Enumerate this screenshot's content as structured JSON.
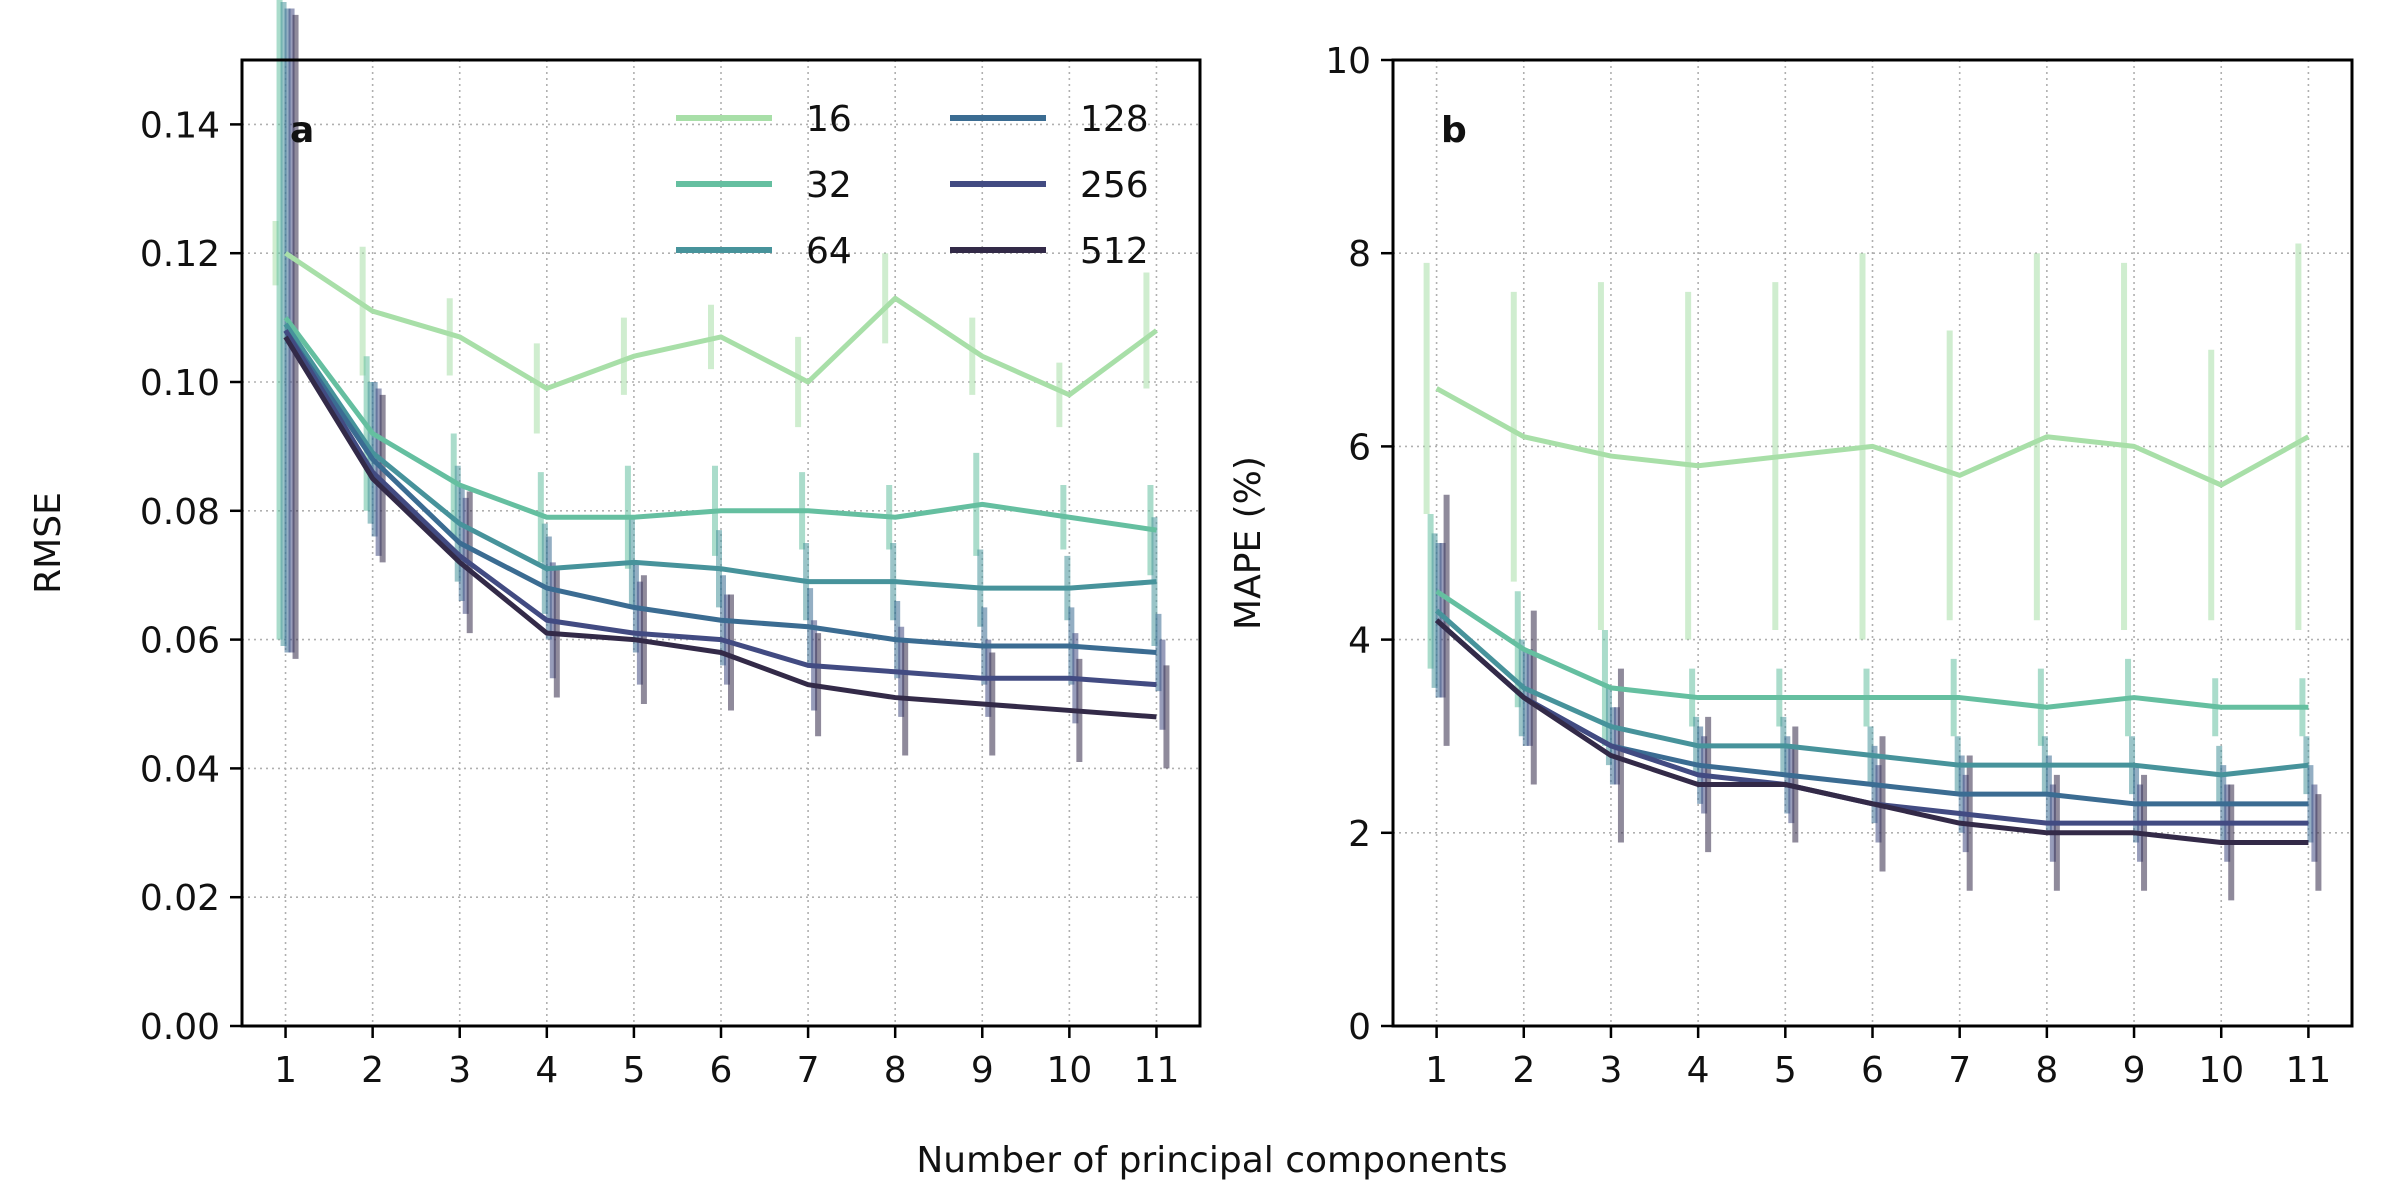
{
  "figure": {
    "shared_xlabel": "Number of principal components"
  },
  "chart_data": [
    {
      "type": "line",
      "panel_label": "a",
      "xlabel": "",
      "ylabel": "RMSE",
      "x": [
        1,
        2,
        3,
        4,
        5,
        6,
        7,
        8,
        9,
        10,
        11
      ],
      "xticks": [
        "1",
        "2",
        "3",
        "4",
        "5",
        "6",
        "7",
        "8",
        "9",
        "10",
        "11"
      ],
      "xlim": [
        0.5,
        11.5
      ],
      "ylim": [
        0,
        0.15
      ],
      "yticks": [
        "0.00",
        "0.02",
        "0.04",
        "0.06",
        "0.08",
        "0.10",
        "0.12",
        "0.14"
      ],
      "grid": true,
      "error_bars": true,
      "legend": {
        "position": "top-right",
        "columns": 2
      },
      "series": [
        {
          "name": "16",
          "color": "#a8dfa8",
          "values": [
            0.12,
            0.111,
            0.107,
            0.099,
            0.104,
            0.107,
            0.1,
            0.113,
            0.104,
            0.098,
            0.108
          ],
          "err": [
            0.005,
            0.01,
            0.006,
            0.007,
            0.006,
            0.005,
            0.007,
            0.007,
            0.006,
            0.005,
            0.009
          ]
        },
        {
          "name": "32",
          "color": "#65bfa0",
          "values": [
            0.11,
            0.092,
            0.084,
            0.079,
            0.079,
            0.08,
            0.08,
            0.079,
            0.081,
            0.079,
            0.077
          ],
          "err": [
            0.05,
            0.012,
            0.008,
            0.007,
            0.008,
            0.007,
            0.006,
            0.005,
            0.008,
            0.005,
            0.007
          ]
        },
        {
          "name": "64",
          "color": "#47939b",
          "values": [
            0.109,
            0.089,
            0.078,
            0.071,
            0.072,
            0.071,
            0.069,
            0.069,
            0.068,
            0.068,
            0.069
          ],
          "err": [
            0.05,
            0.011,
            0.009,
            0.007,
            0.007,
            0.006,
            0.006,
            0.006,
            0.006,
            0.005,
            0.01
          ]
        },
        {
          "name": "128",
          "color": "#3b6c92",
          "values": [
            0.108,
            0.088,
            0.075,
            0.068,
            0.065,
            0.063,
            0.062,
            0.06,
            0.059,
            0.059,
            0.058
          ],
          "err": [
            0.05,
            0.012,
            0.009,
            0.008,
            0.007,
            0.007,
            0.006,
            0.006,
            0.006,
            0.006,
            0.006
          ]
        },
        {
          "name": "256",
          "color": "#424b82",
          "values": [
            0.108,
            0.086,
            0.073,
            0.063,
            0.061,
            0.06,
            0.056,
            0.055,
            0.054,
            0.054,
            0.053
          ],
          "err": [
            0.05,
            0.013,
            0.009,
            0.009,
            0.008,
            0.007,
            0.007,
            0.007,
            0.006,
            0.007,
            0.007
          ]
        },
        {
          "name": "512",
          "color": "#332a48",
          "values": [
            0.107,
            0.085,
            0.072,
            0.061,
            0.06,
            0.058,
            0.053,
            0.051,
            0.05,
            0.049,
            0.048
          ],
          "err": [
            0.05,
            0.013,
            0.011,
            0.01,
            0.01,
            0.009,
            0.008,
            0.009,
            0.008,
            0.008,
            0.008
          ]
        }
      ]
    },
    {
      "type": "line",
      "panel_label": "b",
      "xlabel": "",
      "ylabel": "MAPE (%)",
      "x": [
        1,
        2,
        3,
        4,
        5,
        6,
        7,
        8,
        9,
        10,
        11
      ],
      "xticks": [
        "1",
        "2",
        "3",
        "4",
        "5",
        "6",
        "7",
        "8",
        "9",
        "10",
        "11"
      ],
      "xlim": [
        0.5,
        11.5
      ],
      "ylim": [
        0,
        10
      ],
      "yticks": [
        "0",
        "2",
        "4",
        "6",
        "8",
        "10"
      ],
      "grid": true,
      "error_bars": true,
      "series": [
        {
          "name": "16",
          "color": "#a8dfa8",
          "values": [
            6.6,
            6.1,
            5.9,
            5.8,
            5.9,
            6.0,
            5.7,
            6.1,
            6.0,
            5.6,
            6.1
          ],
          "err": [
            1.3,
            1.5,
            1.8,
            1.8,
            1.8,
            2.0,
            1.5,
            1.9,
            1.9,
            1.4,
            2.0
          ]
        },
        {
          "name": "32",
          "color": "#65bfa0",
          "values": [
            4.5,
            3.9,
            3.5,
            3.4,
            3.4,
            3.4,
            3.4,
            3.3,
            3.4,
            3.3,
            3.3
          ],
          "err": [
            0.8,
            0.6,
            0.6,
            0.3,
            0.3,
            0.3,
            0.4,
            0.4,
            0.4,
            0.3,
            0.3
          ]
        },
        {
          "name": "64",
          "color": "#47939b",
          "values": [
            4.3,
            3.5,
            3.1,
            2.9,
            2.9,
            2.8,
            2.7,
            2.7,
            2.7,
            2.6,
            2.7
          ],
          "err": [
            0.8,
            0.5,
            0.4,
            0.3,
            0.3,
            0.3,
            0.3,
            0.3,
            0.3,
            0.3,
            0.3
          ]
        },
        {
          "name": "128",
          "color": "#3b6c92",
          "values": [
            4.2,
            3.4,
            2.9,
            2.7,
            2.6,
            2.5,
            2.4,
            2.4,
            2.3,
            2.3,
            2.3
          ],
          "err": [
            0.8,
            0.5,
            0.4,
            0.4,
            0.4,
            0.4,
            0.4,
            0.4,
            0.4,
            0.4,
            0.4
          ]
        },
        {
          "name": "256",
          "color": "#424b82",
          "values": [
            4.2,
            3.4,
            2.9,
            2.6,
            2.5,
            2.3,
            2.2,
            2.1,
            2.1,
            2.1,
            2.1
          ],
          "err": [
            0.8,
            0.5,
            0.4,
            0.4,
            0.4,
            0.4,
            0.4,
            0.4,
            0.4,
            0.4,
            0.4
          ]
        },
        {
          "name": "512",
          "color": "#332a48",
          "values": [
            4.2,
            3.4,
            2.8,
            2.5,
            2.5,
            2.3,
            2.1,
            2.0,
            2.0,
            1.9,
            1.9
          ],
          "err": [
            1.3,
            0.9,
            0.9,
            0.7,
            0.6,
            0.7,
            0.7,
            0.6,
            0.6,
            0.6,
            0.5
          ]
        }
      ]
    }
  ]
}
